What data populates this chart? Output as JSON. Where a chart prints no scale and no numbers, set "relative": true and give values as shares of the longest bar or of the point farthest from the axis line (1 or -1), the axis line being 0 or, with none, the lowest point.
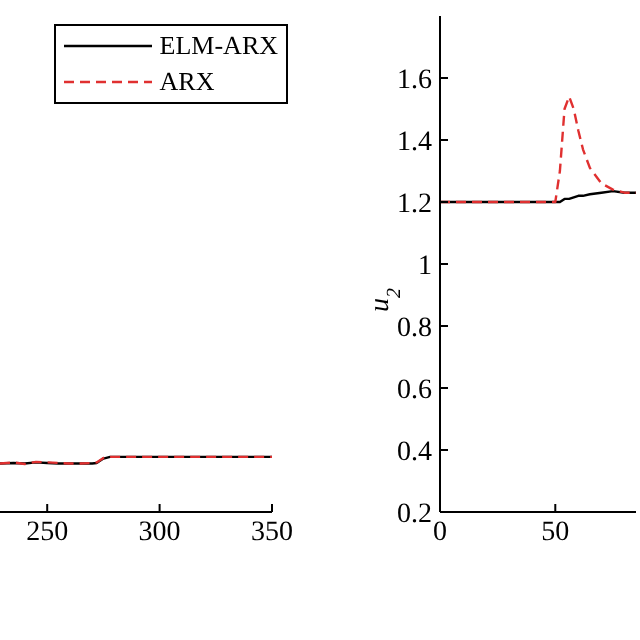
{
  "chart_data": [
    {
      "type": "line",
      "relative": true,
      "x": [
        229,
        235,
        240,
        245,
        250,
        255,
        260,
        265,
        270,
        272,
        275,
        278,
        285,
        290,
        300,
        350
      ],
      "xlim": [
        229,
        350
      ],
      "xticks": [
        250,
        300,
        350
      ],
      "tick_labels": "x",
      "legend": "top right",
      "grid": false,
      "marker": "none",
      "series": [
        {
          "name": "ELM-ARX",
          "color": "#000000",
          "line_style": "solid",
          "values": [
            0.88,
            0.89,
            0.88,
            0.9,
            0.89,
            0.88,
            0.88,
            0.88,
            0.88,
            0.89,
            0.97,
            1.0,
            1.0,
            1.0,
            1.0,
            1.0
          ]
        },
        {
          "name": "ARX",
          "color": "#e03030",
          "line_style": "dashed",
          "values": [
            0.88,
            0.9,
            0.87,
            0.91,
            0.9,
            0.89,
            0.88,
            0.88,
            0.89,
            0.9,
            0.98,
            1.0,
            1.0,
            1.0,
            1.0,
            1.0
          ]
        }
      ]
    },
    {
      "type": "line",
      "ylabel": "u$_{2}$",
      "x": [
        0,
        10,
        20,
        30,
        40,
        50,
        52,
        54,
        56,
        58,
        60,
        62,
        65,
        70,
        75,
        80,
        85
      ],
      "xlim": [
        0,
        85
      ],
      "xticks": [
        0,
        50
      ],
      "ylim": [
        0.2,
        1.8
      ],
      "yticks": [
        0.2,
        0.4,
        0.6,
        0.8,
        1,
        1.2,
        1.4,
        1.6
      ],
      "grid": false,
      "marker": "none",
      "series": [
        {
          "color": "#000000",
          "line_style": "solid",
          "values": [
            1.2,
            1.2,
            1.2,
            1.2,
            1.2,
            1.2,
            1.2,
            1.21,
            1.21,
            1.215,
            1.22,
            1.22,
            1.225,
            1.23,
            1.235,
            1.23,
            1.23
          ]
        },
        {
          "color": "#e03030",
          "line_style": "dashed",
          "values": [
            1.2,
            1.2,
            1.2,
            1.2,
            1.2,
            1.2,
            1.3,
            1.5,
            1.54,
            1.5,
            1.43,
            1.37,
            1.31,
            1.26,
            1.24,
            1.23,
            1.23
          ]
        }
      ]
    }
  ]
}
